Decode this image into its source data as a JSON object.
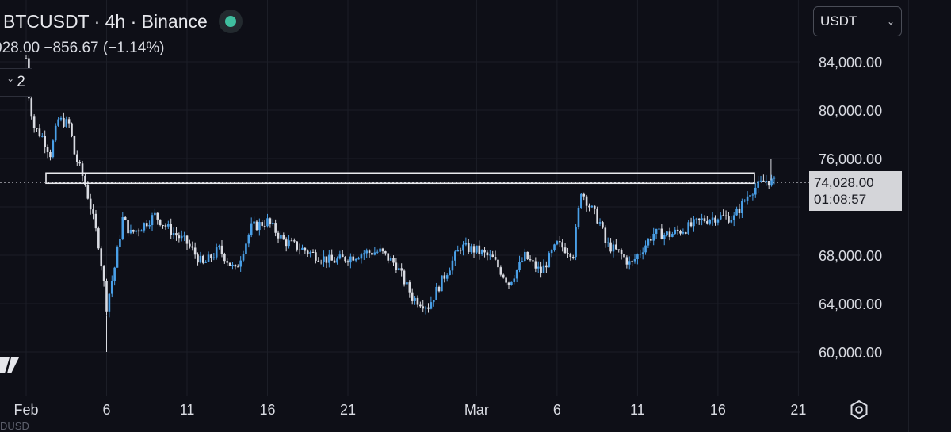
{
  "header": {
    "symbol_line": "BTCUSDT · 4h · Binance",
    "ohlc_line": "028.00  −856.67 (−1.14%)",
    "indicator_count": "2",
    "status_color": "#3fbf9f"
  },
  "currency": {
    "label": "USDT"
  },
  "price_label": {
    "price": "74,028.00",
    "countdown": "01:08:57"
  },
  "bottom_fragment": "DUSD",
  "icons": {
    "settings": "gear-icon",
    "dropdown": "chevron-down-icon",
    "status": "status-dot-icon",
    "logo": "brand-logo-icon"
  },
  "colors": {
    "background": "#0e0f17",
    "up_candle": "#4aa0e8",
    "down_candle": "#d9dbe2",
    "grid": "#1c1e27"
  },
  "chart_data": {
    "type": "candlestick",
    "title": "BTCUSDT · 4h · Binance",
    "y_axis": {
      "ticks": [
        84000,
        80000,
        76000,
        68000,
        64000,
        60000
      ],
      "tick_labels": [
        "84,000.00",
        "80,000.00",
        "76,000.00",
        "68,000.00",
        "64,000.00",
        "60,000.00"
      ],
      "range": [
        58000,
        88000
      ]
    },
    "x_axis": {
      "ticks": [
        "Feb",
        "6",
        "11",
        "16",
        "21",
        "Mar",
        "6",
        "11",
        "16",
        "21"
      ],
      "start": "Jan 31",
      "end": "Mar 22"
    },
    "last_price": 74028,
    "resistance_zone": {
      "low": 73950,
      "high": 74800
    },
    "grid": true,
    "close_path": [
      [
        "Jan 31",
        84300
      ],
      [
        "Feb 1",
        82500
      ],
      [
        "Feb 1.5",
        78600
      ],
      [
        "Feb 2",
        77800
      ],
      [
        "Feb 2.5",
        76400
      ],
      [
        "Feb 3",
        79200
      ],
      [
        "Feb 3.7",
        78800
      ],
      [
        "Feb 4",
        76400
      ],
      [
        "Feb 4.6",
        74200
      ],
      [
        "Feb 5",
        72000
      ],
      [
        "Feb 5.5",
        69000
      ],
      [
        "Feb 5.9",
        65000
      ],
      [
        "Feb 6",
        63800
      ],
      [
        "Feb 6.5",
        67000
      ],
      [
        "Feb 7",
        71000
      ],
      [
        "Feb 7.5",
        69800
      ],
      [
        "Feb 8",
        70200
      ],
      [
        "Feb 9",
        71300
      ],
      [
        "Feb 10",
        70000
      ],
      [
        "Feb 11",
        69000
      ],
      [
        "Feb 12",
        67200
      ],
      [
        "Feb 13",
        68500
      ],
      [
        "Feb 14",
        66700
      ],
      [
        "Feb 15",
        70300
      ],
      [
        "Feb 16",
        70800
      ],
      [
        "Feb 17",
        69200
      ],
      [
        "Feb 18",
        68600
      ],
      [
        "Feb 19",
        68000
      ],
      [
        "Feb 20",
        67500
      ],
      [
        "Feb 21",
        67800
      ],
      [
        "Feb 22",
        68200
      ],
      [
        "Feb 23",
        68300
      ],
      [
        "Feb 24",
        67200
      ],
      [
        "Feb 25",
        64500
      ],
      [
        "Feb 26",
        63800
      ],
      [
        "Feb 27",
        66300
      ],
      [
        "Feb 28",
        68700
      ],
      [
        "Mar 1",
        68400
      ],
      [
        "Mar 2",
        67700
      ],
      [
        "Mar 3",
        65700
      ],
      [
        "Mar 4",
        67900
      ],
      [
        "Mar 5",
        66600
      ],
      [
        "Mar 6",
        68900
      ],
      [
        "Mar 7",
        68200
      ],
      [
        "Mar 7.5",
        73400
      ],
      [
        "Mar 8",
        72100
      ],
      [
        "Mar 8.7",
        70600
      ],
      [
        "Mar 9",
        69000
      ],
      [
        "Mar 10",
        68000
      ],
      [
        "Mar 10.6",
        67200
      ],
      [
        "Mar 11",
        68000
      ],
      [
        "Mar 12",
        69800
      ],
      [
        "Mar 13",
        69700
      ],
      [
        "Mar 14",
        70200
      ],
      [
        "Mar 15",
        70900
      ],
      [
        "Mar 16",
        71200
      ],
      [
        "Mar 17",
        71100
      ],
      [
        "Mar 18",
        73300
      ],
      [
        "Mar 19",
        74200
      ],
      [
        "Mar 19.5",
        74028
      ]
    ]
  }
}
